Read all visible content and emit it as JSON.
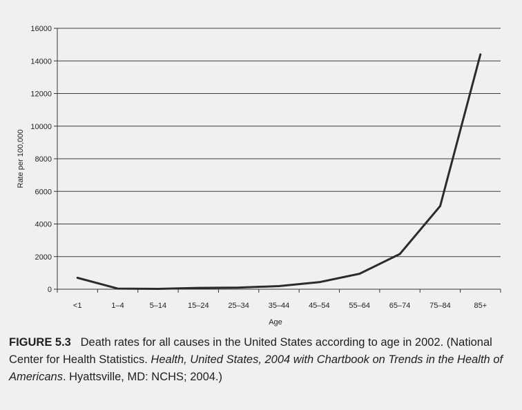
{
  "chart_data": {
    "type": "line",
    "categories": [
      "<1",
      "1–4",
      "5–14",
      "15–24",
      "25–34",
      "35–44",
      "45–54",
      "55–64",
      "65–74",
      "75–84",
      "85+"
    ],
    "series": [
      {
        "values": [
          700,
          40,
          20,
          80,
          100,
          190,
          430,
          950,
          2160,
          5100,
          14400
        ],
        "color": "#2b2b2b"
      }
    ],
    "xlabel": "Age",
    "ylabel": "Rate per 100,000",
    "ylim": [
      0,
      16000
    ],
    "yticks": [
      0,
      2000,
      4000,
      6000,
      8000,
      10000,
      12000,
      14000,
      16000
    ],
    "grid": true,
    "legend": "none"
  },
  "caption": {
    "label": "FIGURE 5.3",
    "text1": "Death rates for all causes in the United States according to age in 2002. (National Center for Health Statistics. ",
    "italic": "Health, United States, 2004 with Chartbook on Trends in the Health of Americans",
    "text2": ". Hyattsville, MD: NCHS; 2004.)"
  }
}
